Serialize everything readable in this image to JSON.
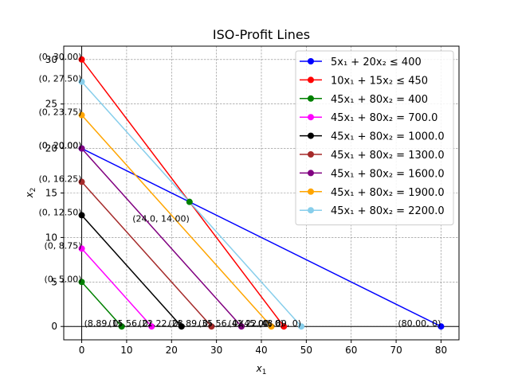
{
  "chart_data": {
    "type": "line",
    "title": "ISO-Profit Lines",
    "xlabel": "x",
    "xlabel_sub": "1",
    "ylabel": "x",
    "ylabel_sub": "2",
    "xlim": [
      -4,
      84
    ],
    "ylim": [
      -1.5,
      31.5
    ],
    "xticks": [
      0,
      10,
      20,
      30,
      40,
      50,
      60,
      70,
      80
    ],
    "yticks": [
      0,
      5,
      10,
      15,
      20,
      25,
      30
    ],
    "grid": true,
    "grid_style": "dashed",
    "legend_position": "upper right",
    "series": [
      {
        "legend": "5x₁ + 20x₂ ≤ 400",
        "color": "#0000ff",
        "points": [
          [
            0,
            20
          ],
          [
            80,
            0
          ]
        ]
      },
      {
        "legend": "10x₁ + 15x₂ ≤ 450",
        "color": "#ff0000",
        "points": [
          [
            0,
            30
          ],
          [
            45,
            0
          ]
        ]
      },
      {
        "legend": "45x₁ + 80x₂ = 400",
        "color": "#008000",
        "points": [
          [
            0,
            5
          ],
          [
            8.89,
            0
          ]
        ]
      },
      {
        "legend": "45x₁ + 80x₂ = 700.0",
        "color": "#ff00ff",
        "points": [
          [
            0,
            8.75
          ],
          [
            15.56,
            0
          ]
        ]
      },
      {
        "legend": "45x₁ + 80x₂ = 1000.0",
        "color": "#000000",
        "points": [
          [
            0,
            12.5
          ],
          [
            22.22,
            0
          ]
        ]
      },
      {
        "legend": "45x₁ + 80x₂ = 1300.0",
        "color": "#a52a2a",
        "points": [
          [
            0,
            16.25
          ],
          [
            28.89,
            0
          ]
        ]
      },
      {
        "legend": "45x₁ + 80x₂ = 1600.0",
        "color": "#800080",
        "points": [
          [
            0,
            20
          ],
          [
            35.56,
            0
          ]
        ]
      },
      {
        "legend": "45x₁ + 80x₂ = 1900.0",
        "color": "#ffa500",
        "points": [
          [
            0,
            23.75
          ],
          [
            42.22,
            0
          ]
        ]
      },
      {
        "legend": "45x₁ + 80x₂ = 2200.0",
        "color": "#87ceeb",
        "points": [
          [
            0,
            27.5
          ],
          [
            48.89,
            0
          ]
        ]
      }
    ],
    "intersection": {
      "point": [
        24,
        14
      ],
      "color": "#008000",
      "label": "(24.0, 14.00)"
    },
    "annotations": [
      {
        "text": "(0, 30.00)",
        "x": 0,
        "y": 30,
        "anchor": "end"
      },
      {
        "text": "(0, 27.50)",
        "x": 0,
        "y": 27.5,
        "anchor": "end"
      },
      {
        "text": "(0, 23.75)",
        "x": 0,
        "y": 23.75,
        "anchor": "end"
      },
      {
        "text": "(0, 20.00)",
        "x": 0,
        "y": 20,
        "anchor": "end"
      },
      {
        "text": "(0, 20.00)",
        "x": 0,
        "y": 20,
        "anchor": "end"
      },
      {
        "text": "(0, 16.25)",
        "x": 0,
        "y": 16.25,
        "anchor": "end"
      },
      {
        "text": "(0, 12.50)",
        "x": 0,
        "y": 12.5,
        "anchor": "end"
      },
      {
        "text": "(0, 8.75)",
        "x": 0,
        "y": 8.75,
        "anchor": "end"
      },
      {
        "text": "(0, 5.00)",
        "x": 0,
        "y": 5,
        "anchor": "end"
      },
      {
        "text": "(8.89, 0)",
        "x": 8.89,
        "y": 0,
        "anchor": "end"
      },
      {
        "text": "(15.56, 0)",
        "x": 15.56,
        "y": 0,
        "anchor": "end"
      },
      {
        "text": "(22.22, 0)",
        "x": 22.22,
        "y": 0,
        "anchor": "end"
      },
      {
        "text": "(28.89, 0)",
        "x": 28.89,
        "y": 0,
        "anchor": "end"
      },
      {
        "text": "(35.56, 0)",
        "x": 35.56,
        "y": 0,
        "anchor": "end"
      },
      {
        "text": "(42.22, 0)",
        "x": 42.22,
        "y": 0,
        "anchor": "end"
      },
      {
        "text": "(45.00, 0)",
        "x": 45,
        "y": 0,
        "anchor": "end"
      },
      {
        "text": "(48.89, 0)",
        "x": 48.89,
        "y": 0,
        "anchor": "end"
      },
      {
        "text": "(80.00, 0)",
        "x": 80,
        "y": 0,
        "anchor": "end"
      }
    ]
  }
}
